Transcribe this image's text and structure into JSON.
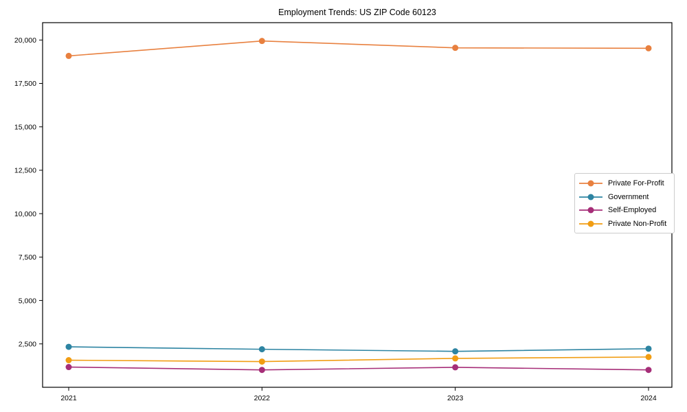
{
  "chart_data": {
    "type": "line",
    "title": "Employment Trends: US ZIP Code 60123",
    "categories": [
      "2021",
      "2022",
      "2023",
      "2024"
    ],
    "series": [
      {
        "name": "Private For-Profit",
        "color": "#e8803f",
        "values": [
          19085,
          19945,
          19550,
          19525
        ]
      },
      {
        "name": "Government",
        "color": "#2d84a2",
        "values": [
          2330,
          2190,
          2070,
          2220
        ]
      },
      {
        "name": "Self-Employed",
        "color": "#a62e78",
        "values": [
          1165,
          1000,
          1150,
          1000
        ]
      },
      {
        "name": "Private Non-Profit",
        "color": "#f19d13",
        "values": [
          1560,
          1480,
          1665,
          1745
        ]
      }
    ],
    "xlabel": "",
    "ylabel": "",
    "yticks": [
      2500,
      5000,
      7500,
      10000,
      12500,
      15000,
      17500,
      20000
    ],
    "ylim": [
      0,
      21000
    ],
    "grid": false,
    "marker": "circle",
    "legend_position": "center-right",
    "axis_color": "#000000",
    "legend_border_color": "#cccccc"
  }
}
